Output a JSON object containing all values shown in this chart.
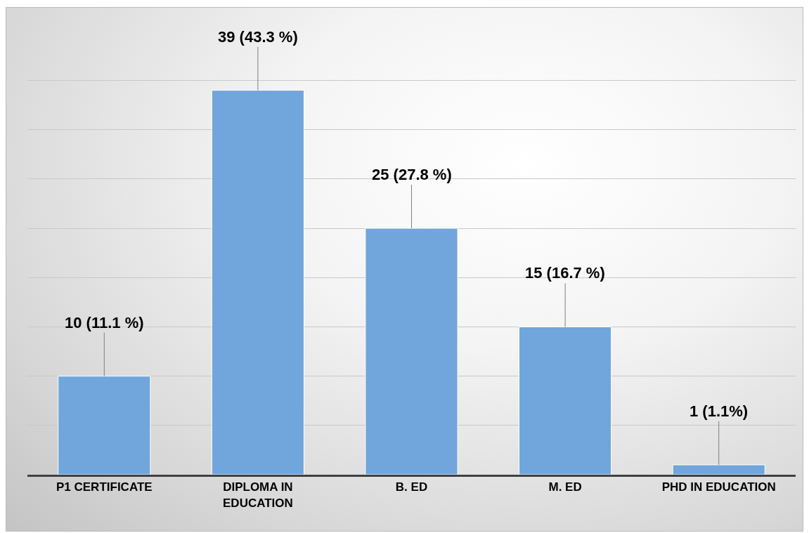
{
  "chart_data": {
    "type": "bar",
    "categories": [
      "P1 CERTIFICATE",
      "DIPLOMA IN EDUCATION",
      "B. ED",
      "M. ED",
      "PHD IN EDUCATION"
    ],
    "values": [
      10,
      39,
      25,
      15,
      1
    ],
    "value_labels": [
      "10 (11.1 %)",
      "39 (43.3 %)",
      "25 (27.8 %)",
      "15 (16.7 %)",
      "1 (1.1%)"
    ],
    "color": "#70a6db",
    "yticks": [
      {
        "value": 0,
        "label": null
      },
      {
        "value": 5,
        "label": null
      },
      {
        "value": 10,
        "label": null
      },
      {
        "value": 15,
        "label": null
      },
      {
        "value": 20,
        "label": null
      },
      {
        "value": 25,
        "label": null
      },
      {
        "value": 30,
        "label": null
      },
      {
        "value": 35,
        "label": null
      },
      {
        "value": 40,
        "label": null
      }
    ],
    "grid": "y",
    "tick_labels": "x"
  }
}
